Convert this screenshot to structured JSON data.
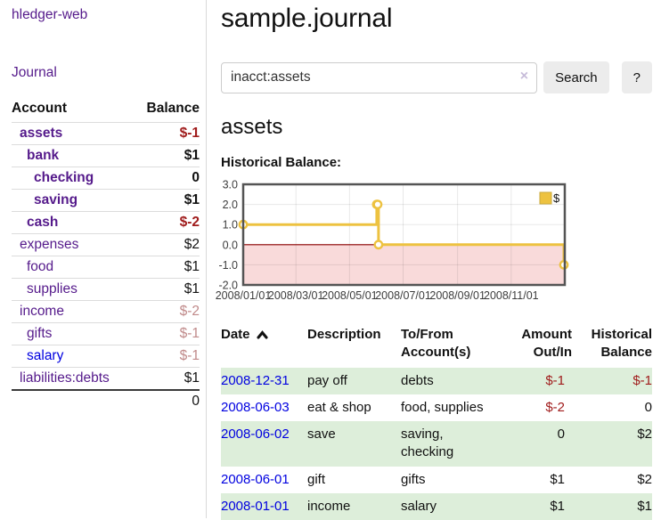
{
  "colors": {
    "link_purple": "#551a8b",
    "link_blue": "#0000e0",
    "negative_red": "#a01c1c",
    "dimmed_red": "#c08a8a",
    "row_green": "#ddeeda",
    "chart_line_yellow": "#edc240",
    "chart_negative_fill": "#f9dada",
    "chart_zero_line": "#8b0000",
    "button_gray": "#ececec"
  },
  "sidebar": {
    "brand": "hledger-web",
    "nav": {
      "journal": "Journal"
    },
    "table": {
      "account_header": "Account",
      "balance_header": "Balance",
      "total": "0"
    },
    "accounts": [
      {
        "name": "assets",
        "depth": 1,
        "balance": "$-1",
        "bold": true,
        "negative": true
      },
      {
        "name": "bank",
        "depth": 2,
        "balance": "$1",
        "bold": true
      },
      {
        "name": "checking",
        "depth": 3,
        "balance": "0",
        "bold": true
      },
      {
        "name": "saving",
        "depth": 3,
        "balance": "$1",
        "bold": true
      },
      {
        "name": "cash",
        "depth": 2,
        "balance": "$-2",
        "bold": true,
        "negative": true
      },
      {
        "name": "expenses",
        "depth": 1,
        "balance": "$2"
      },
      {
        "name": "food",
        "depth": 2,
        "balance": "$1"
      },
      {
        "name": "supplies",
        "depth": 2,
        "balance": "$1"
      },
      {
        "name": "income",
        "depth": 1,
        "balance": "$-2",
        "dimmed": true
      },
      {
        "name": "gifts",
        "depth": 2,
        "balance": "$-1",
        "dimmed": true
      },
      {
        "name": "salary",
        "depth": 2,
        "balance": "$-1",
        "dimmed": true,
        "blue": true
      },
      {
        "name": "liabilities:debts",
        "depth": 1,
        "balance": "$1"
      }
    ]
  },
  "header": {
    "title": "sample.journal"
  },
  "search": {
    "value": "inacct:assets",
    "clear_icon": "×",
    "search_button": "Search",
    "help_button": "?"
  },
  "account_view": {
    "title": "assets",
    "chart_heading": "Historical Balance:"
  },
  "chart_data": {
    "type": "line",
    "title": "Historical Balance:",
    "series": [
      {
        "name": "$",
        "color": "#edc240",
        "step": true,
        "points": [
          [
            "2008-01-01",
            1
          ],
          [
            "2008-06-01",
            2
          ],
          [
            "2008-06-02",
            2
          ],
          [
            "2008-06-03",
            0
          ],
          [
            "2008-12-31",
            -1
          ]
        ]
      }
    ],
    "xlim": [
      "2008-01-01",
      "2009-01-01"
    ],
    "ylim": [
      -2,
      3
    ],
    "x_ticks": [
      "2008/01/01",
      "2008/03/01",
      "2008/05/01",
      "2008/07/01",
      "2008/09/01",
      "2008/11/01"
    ],
    "y_ticks": [
      {
        "label": "3.0",
        "value": 3
      },
      {
        "label": "2.0",
        "value": 2
      },
      {
        "label": "1.0",
        "value": 1
      },
      {
        "label": "0.0",
        "value": 0
      },
      {
        "label": "-1.0",
        "value": -1
      },
      {
        "label": "-2.0",
        "value": -2
      }
    ],
    "grid": true,
    "legend": {
      "label": "$",
      "position": "top-right"
    },
    "negative_region_fill": "#f9dada",
    "zero_line_color": "#8b0000"
  },
  "register": {
    "headers": {
      "date": "Date",
      "sort_icon": "chevron-up",
      "description": "Description",
      "accounts": "To/From Account(s)",
      "amount": "Amount Out/In",
      "balance": "Historical Balance"
    },
    "rows": [
      {
        "date": "2008-12-31",
        "description": "pay off",
        "accounts": "debts",
        "amount": "$-1",
        "amount_negative": true,
        "balance": "$-1",
        "balance_negative": true
      },
      {
        "date": "2008-06-03",
        "description": "eat & shop",
        "accounts": "food, supplies",
        "amount": "$-2",
        "amount_negative": true,
        "balance": "0"
      },
      {
        "date": "2008-06-02",
        "description": "save",
        "accounts": "saving, checking",
        "amount": "0",
        "balance": "$2"
      },
      {
        "date": "2008-06-01",
        "description": "gift",
        "accounts": "gifts",
        "amount": "$1",
        "balance": "$2"
      },
      {
        "date": "2008-01-01",
        "description": "income",
        "accounts": "salary",
        "amount": "$1",
        "balance": "$1"
      }
    ]
  }
}
